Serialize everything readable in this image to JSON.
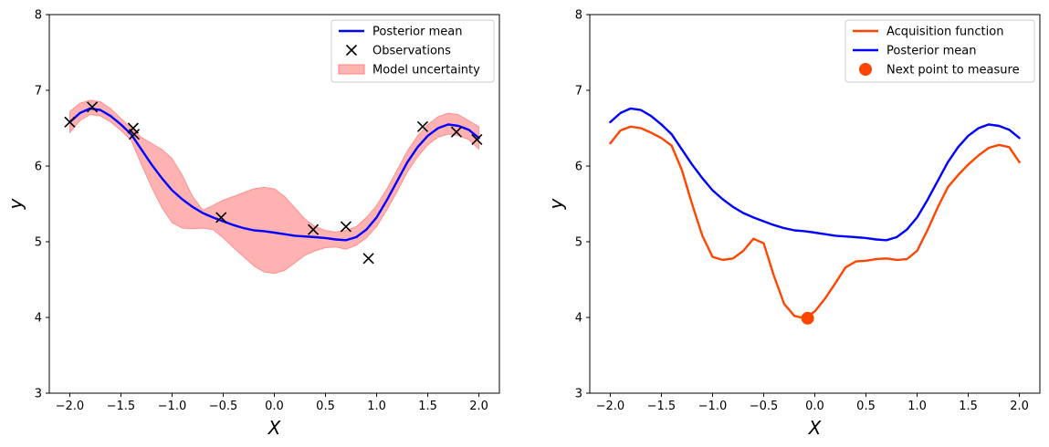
{
  "chart_data": [
    {
      "type": "line",
      "xlabel": "X",
      "ylabel": "y",
      "xlim": [
        -2.2,
        2.2
      ],
      "ylim": [
        3,
        8
      ],
      "xticks": [
        "−2.0",
        "−1.5",
        "−1.0",
        "−0.5",
        "0.0",
        "0.5",
        "1.0",
        "1.5",
        "2.0"
      ],
      "xtick_values": [
        -2.0,
        -1.5,
        -1.0,
        -0.5,
        0.0,
        0.5,
        1.0,
        1.5,
        2.0
      ],
      "yticks": [
        "3",
        "4",
        "5",
        "6",
        "7",
        "8"
      ],
      "ytick_values": [
        3,
        4,
        5,
        6,
        7,
        8
      ],
      "grid": false,
      "legend_position": "top-right",
      "legend": [
        {
          "label": "Posterior mean",
          "kind": "line",
          "color": "#0000ff"
        },
        {
          "label": "Observations",
          "kind": "x-marker",
          "color": "#000000"
        },
        {
          "label": "Model uncertainty",
          "kind": "patch",
          "color": "#ffb3b3"
        }
      ],
      "series": [
        {
          "name": "Posterior mean",
          "kind": "line",
          "color": "#0000ff",
          "x": [
            -2.0,
            -1.9,
            -1.8,
            -1.7,
            -1.6,
            -1.5,
            -1.4,
            -1.3,
            -1.2,
            -1.1,
            -1.0,
            -0.9,
            -0.8,
            -0.7,
            -0.6,
            -0.5,
            -0.4,
            -0.3,
            -0.2,
            -0.1,
            0.0,
            0.1,
            0.2,
            0.3,
            0.4,
            0.5,
            0.6,
            0.7,
            0.8,
            0.9,
            1.0,
            1.1,
            1.2,
            1.3,
            1.4,
            1.5,
            1.6,
            1.7,
            1.8,
            1.9,
            2.0
          ],
          "y": [
            6.58,
            6.7,
            6.76,
            6.74,
            6.66,
            6.55,
            6.42,
            6.22,
            6.02,
            5.84,
            5.68,
            5.56,
            5.46,
            5.38,
            5.32,
            5.27,
            5.22,
            5.18,
            5.15,
            5.14,
            5.12,
            5.1,
            5.08,
            5.07,
            5.06,
            5.05,
            5.03,
            5.02,
            5.06,
            5.16,
            5.32,
            5.55,
            5.8,
            6.05,
            6.25,
            6.4,
            6.5,
            6.55,
            6.53,
            6.48,
            6.37
          ]
        },
        {
          "name": "Model uncertainty",
          "kind": "band",
          "color": "#ff0000",
          "x": [
            -2.0,
            -1.9,
            -1.8,
            -1.7,
            -1.6,
            -1.5,
            -1.4,
            -1.3,
            -1.2,
            -1.1,
            -1.0,
            -0.9,
            -0.8,
            -0.7,
            -0.6,
            -0.5,
            -0.4,
            -0.3,
            -0.2,
            -0.1,
            0.0,
            0.1,
            0.2,
            0.3,
            0.4,
            0.5,
            0.6,
            0.7,
            0.8,
            0.9,
            1.0,
            1.1,
            1.2,
            1.3,
            1.4,
            1.5,
            1.6,
            1.7,
            1.8,
            1.9,
            2.0
          ],
          "upper": [
            6.72,
            6.83,
            6.87,
            6.85,
            6.76,
            6.63,
            6.5,
            6.38,
            6.3,
            6.22,
            6.1,
            5.88,
            5.6,
            5.42,
            5.48,
            5.55,
            5.6,
            5.65,
            5.7,
            5.72,
            5.7,
            5.6,
            5.45,
            5.3,
            5.2,
            5.15,
            5.13,
            5.15,
            5.2,
            5.32,
            5.48,
            5.7,
            5.95,
            6.2,
            6.4,
            6.55,
            6.65,
            6.7,
            6.68,
            6.6,
            6.52
          ],
          "lower": [
            6.44,
            6.6,
            6.68,
            6.66,
            6.58,
            6.47,
            6.34,
            6.02,
            5.72,
            5.45,
            5.25,
            5.18,
            5.17,
            5.18,
            5.16,
            5.05,
            4.92,
            4.8,
            4.68,
            4.6,
            4.58,
            4.62,
            4.72,
            4.82,
            4.88,
            4.92,
            4.93,
            4.9,
            4.95,
            5.05,
            5.2,
            5.42,
            5.66,
            5.92,
            6.12,
            6.28,
            6.38,
            6.42,
            6.4,
            6.35,
            6.22
          ]
        },
        {
          "name": "Observations",
          "kind": "scatter",
          "color": "#000000",
          "x": [
            -2.0,
            -1.78,
            -1.38,
            -1.37,
            -0.52,
            0.38,
            0.7,
            0.92,
            1.45,
            1.78,
            1.98
          ],
          "y": [
            6.58,
            6.78,
            6.5,
            6.42,
            5.32,
            5.16,
            5.2,
            4.78,
            6.52,
            6.45,
            6.35
          ]
        }
      ]
    },
    {
      "type": "line",
      "xlabel": "X",
      "ylabel": "y",
      "xlim": [
        -2.2,
        2.2
      ],
      "ylim": [
        3,
        8
      ],
      "xticks": [
        "−2.0",
        "−1.5",
        "−1.0",
        "−0.5",
        "0.0",
        "0.5",
        "1.0",
        "1.5",
        "2.0"
      ],
      "xtick_values": [
        -2.0,
        -1.5,
        -1.0,
        -0.5,
        0.0,
        0.5,
        1.0,
        1.5,
        2.0
      ],
      "yticks": [
        "3",
        "4",
        "5",
        "6",
        "7",
        "8"
      ],
      "ytick_values": [
        3,
        4,
        5,
        6,
        7,
        8
      ],
      "grid": false,
      "legend_position": "top-right",
      "legend": [
        {
          "label": "Acquisition function",
          "kind": "line",
          "color": "#ff4500"
        },
        {
          "label": "Posterior mean",
          "kind": "line",
          "color": "#0000ff"
        },
        {
          "label": "Next point to measure",
          "kind": "dot",
          "color": "#ff4500"
        }
      ],
      "series": [
        {
          "name": "Acquisition function",
          "kind": "line",
          "color": "#ff4500",
          "x": [
            -2.0,
            -1.9,
            -1.8,
            -1.7,
            -1.6,
            -1.5,
            -1.4,
            -1.3,
            -1.2,
            -1.1,
            -1.0,
            -0.9,
            -0.8,
            -0.7,
            -0.6,
            -0.5,
            -0.4,
            -0.3,
            -0.2,
            -0.1,
            0.0,
            0.1,
            0.2,
            0.3,
            0.4,
            0.5,
            0.6,
            0.7,
            0.8,
            0.9,
            1.0,
            1.1,
            1.2,
            1.3,
            1.4,
            1.5,
            1.6,
            1.7,
            1.8,
            1.9,
            2.0
          ],
          "y": [
            6.3,
            6.47,
            6.52,
            6.5,
            6.44,
            6.37,
            6.27,
            5.95,
            5.5,
            5.08,
            4.8,
            4.76,
            4.78,
            4.88,
            5.04,
            4.98,
            4.55,
            4.18,
            4.02,
            3.99,
            4.08,
            4.25,
            4.45,
            4.66,
            4.74,
            4.75,
            4.77,
            4.78,
            4.76,
            4.77,
            4.88,
            5.15,
            5.45,
            5.72,
            5.88,
            6.02,
            6.14,
            6.24,
            6.28,
            6.25,
            6.05
          ]
        },
        {
          "name": "Posterior mean",
          "kind": "line",
          "color": "#0000ff",
          "x": [
            -2.0,
            -1.9,
            -1.8,
            -1.7,
            -1.6,
            -1.5,
            -1.4,
            -1.3,
            -1.2,
            -1.1,
            -1.0,
            -0.9,
            -0.8,
            -0.7,
            -0.6,
            -0.5,
            -0.4,
            -0.3,
            -0.2,
            -0.1,
            0.0,
            0.1,
            0.2,
            0.3,
            0.4,
            0.5,
            0.6,
            0.7,
            0.8,
            0.9,
            1.0,
            1.1,
            1.2,
            1.3,
            1.4,
            1.5,
            1.6,
            1.7,
            1.8,
            1.9,
            2.0
          ],
          "y": [
            6.58,
            6.7,
            6.76,
            6.74,
            6.66,
            6.55,
            6.42,
            6.22,
            6.02,
            5.84,
            5.68,
            5.56,
            5.46,
            5.38,
            5.32,
            5.27,
            5.22,
            5.18,
            5.15,
            5.14,
            5.12,
            5.1,
            5.08,
            5.07,
            5.06,
            5.05,
            5.03,
            5.02,
            5.06,
            5.16,
            5.32,
            5.55,
            5.8,
            6.05,
            6.25,
            6.4,
            6.5,
            6.55,
            6.53,
            6.48,
            6.37
          ]
        },
        {
          "name": "Next point to measure",
          "kind": "dot",
          "color": "#ff4500",
          "x": [
            -0.07
          ],
          "y": [
            3.99
          ]
        }
      ]
    }
  ]
}
